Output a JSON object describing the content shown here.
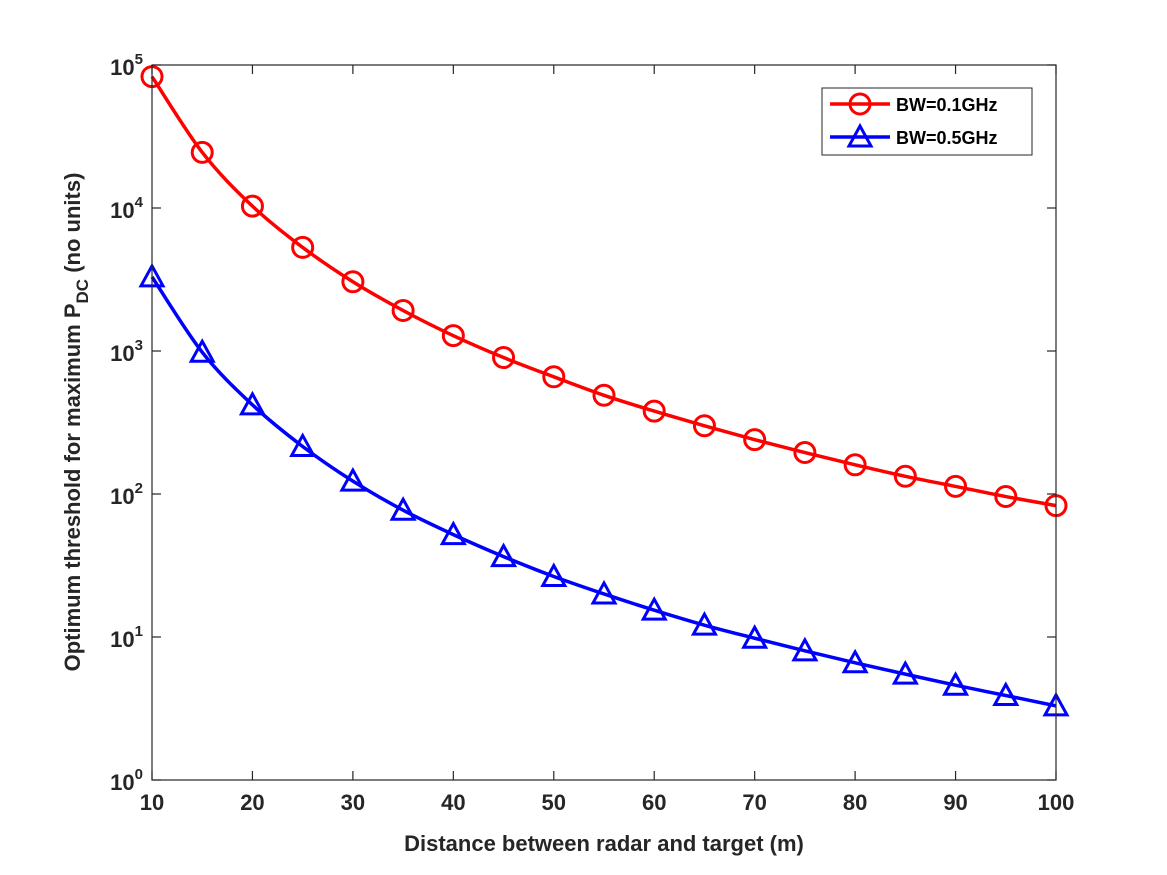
{
  "chart_data": {
    "type": "line",
    "title": "",
    "xlabel": "Distance between radar and target (m)",
    "ylabel": {
      "prefix": "Optimum threshold for maximum P",
      "subscript": "DC",
      "suffix": "(no units)"
    },
    "yscale": "log",
    "xlim": [
      10,
      100
    ],
    "ylim": [
      1,
      100000
    ],
    "x_ticks": [
      10,
      20,
      30,
      40,
      50,
      60,
      70,
      80,
      90,
      100
    ],
    "y_ticks": [
      {
        "value": 1,
        "base": "10",
        "exp": "0"
      },
      {
        "value": 10,
        "base": "10",
        "exp": "1"
      },
      {
        "value": 100,
        "base": "10",
        "exp": "2"
      },
      {
        "value": 1000,
        "base": "10",
        "exp": "3"
      },
      {
        "value": 10000,
        "base": "10",
        "exp": "4"
      },
      {
        "value": 100000,
        "base": "10",
        "exp": "5"
      }
    ],
    "x": [
      10,
      15,
      20,
      25,
      30,
      35,
      40,
      45,
      50,
      55,
      60,
      65,
      70,
      75,
      80,
      85,
      90,
      95,
      100
    ],
    "series": [
      {
        "name": "BW=0.1GHz",
        "color": "#ff0000",
        "marker": "circle",
        "values": [
          83000,
          24500,
          10300,
          5300,
          3050,
          1920,
          1280,
          900,
          660,
          490,
          380,
          300,
          240,
          195,
          160,
          133,
          113,
          96,
          83
        ]
      },
      {
        "name": "BW=0.5GHz",
        "color": "#0000ff",
        "marker": "triangle",
        "values": [
          3300,
          980,
          420,
          215,
          123,
          77,
          52,
          36.5,
          26.5,
          20,
          15.4,
          12.1,
          9.8,
          8.0,
          6.6,
          5.5,
          4.6,
          3.9,
          3.3
        ]
      }
    ],
    "legend_position": "top-right",
    "grid": false
  }
}
